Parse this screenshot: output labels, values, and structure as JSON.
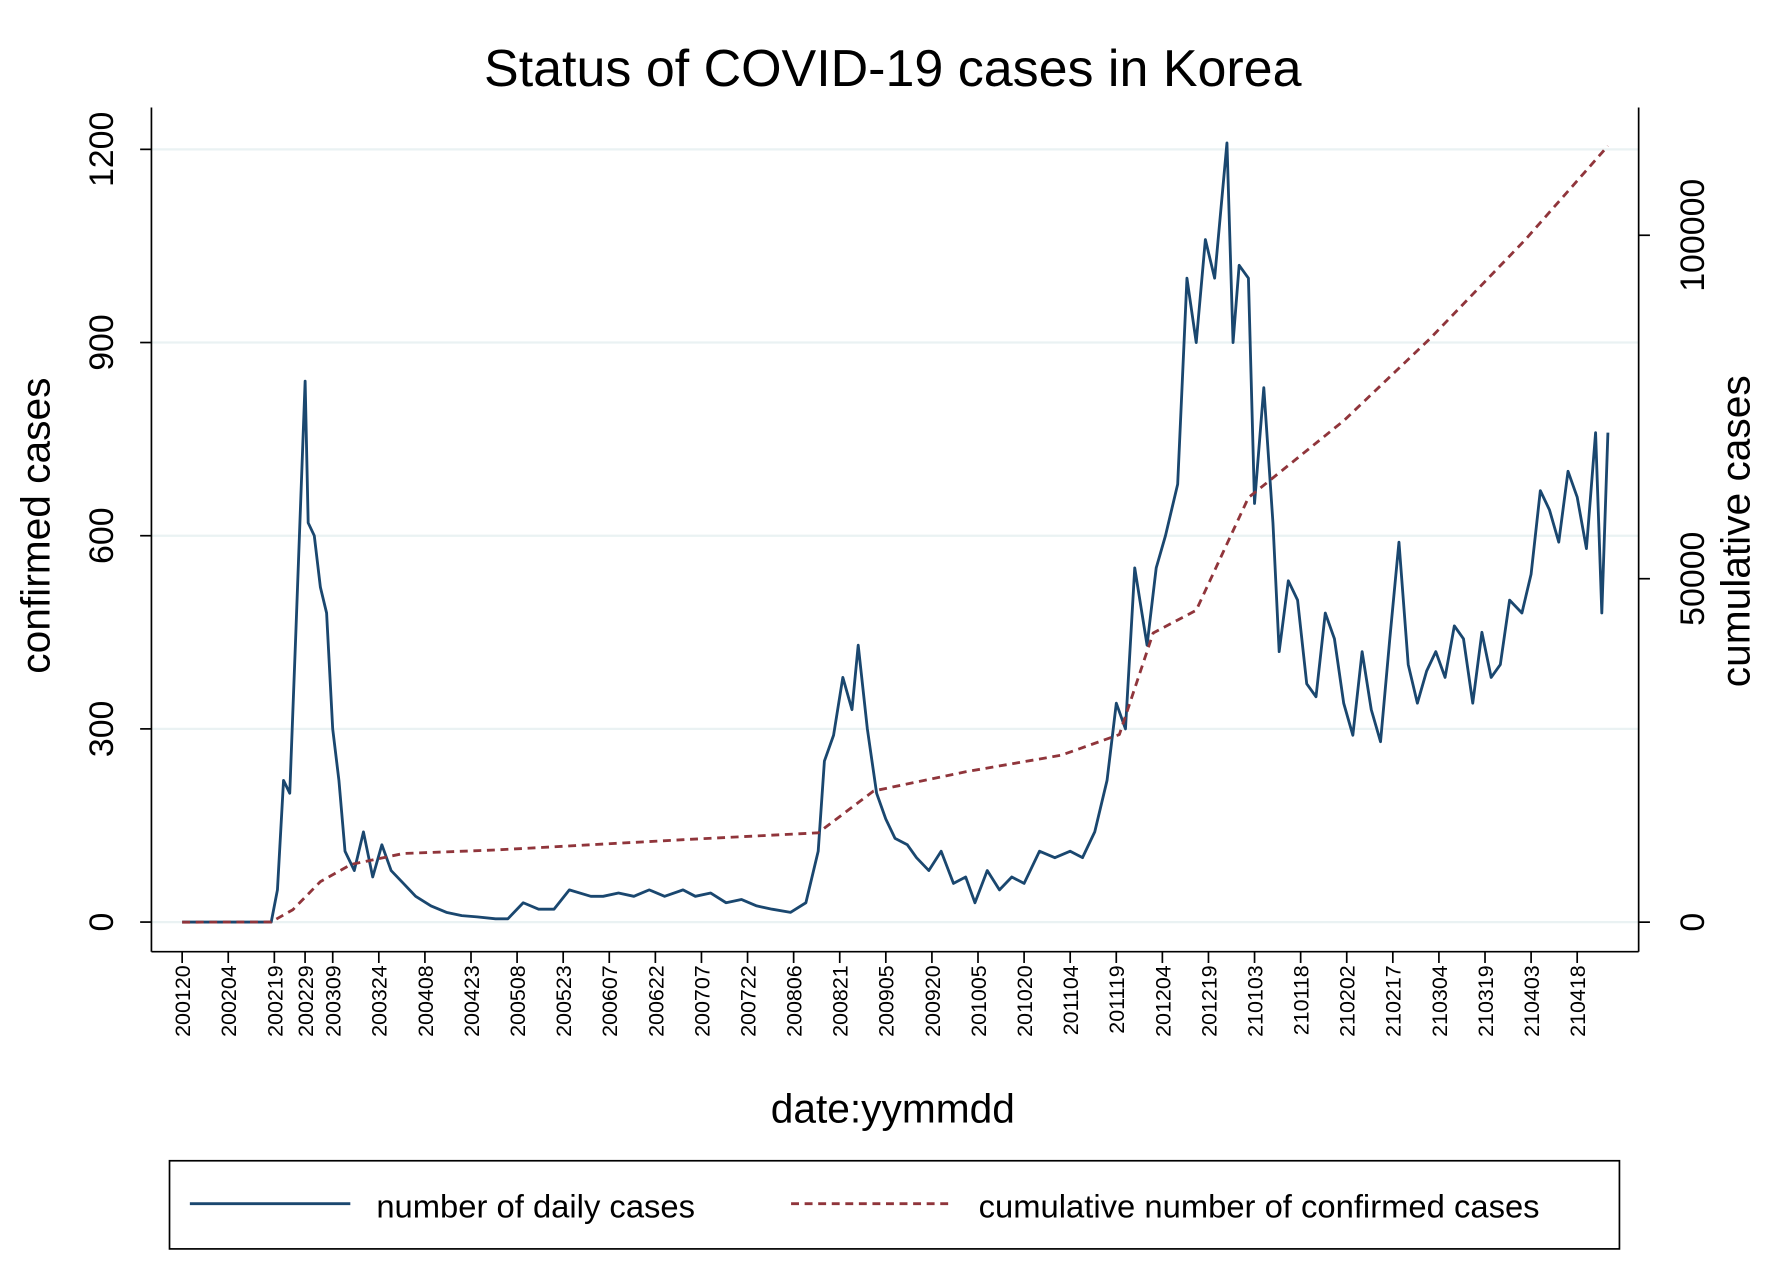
{
  "chart_data": {
    "type": "line",
    "title": "Status of COVID-19 cases in Korea",
    "xlabel": "date:yymmdd",
    "ylabel": "confirmed cases",
    "y2label": "cumulative cases",
    "xlim": [
      "200110",
      "210508"
    ],
    "xticks": [
      "200120",
      "200204",
      "200219",
      "200229",
      "200309",
      "200324",
      "200408",
      "200423",
      "200508",
      "200523",
      "200607",
      "200622",
      "200707",
      "200722",
      "200806",
      "200821",
      "200905",
      "200920",
      "201005",
      "201020",
      "201104",
      "201119",
      "201204",
      "201219",
      "210103",
      "210118",
      "210202",
      "210217",
      "210304",
      "210319",
      "210403",
      "210418"
    ],
    "ylim": [
      -46,
      1265
    ],
    "yticks": [
      0,
      300,
      600,
      900,
      1200
    ],
    "y2lim": [
      -4300,
      118600
    ],
    "y2ticks": [
      0,
      50000,
      100000
    ],
    "grid": true,
    "legend": "bottom",
    "series": [
      {
        "name": "number of daily cases",
        "color": "#1a476f",
        "style": "solid",
        "x": [
          "200120",
          "200218",
          "200220",
          "200222",
          "200224",
          "200226",
          "200229",
          "200301",
          "200303",
          "200305",
          "200307",
          "200309",
          "200311",
          "200313",
          "200316",
          "200319",
          "200322",
          "200325",
          "200328",
          "200401",
          "200405",
          "200410",
          "200415",
          "200420",
          "200425",
          "200501",
          "200505",
          "200510",
          "200515",
          "200520",
          "200525",
          "200601",
          "200605",
          "200610",
          "200615",
          "200620",
          "200625",
          "200701",
          "200705",
          "200710",
          "200715",
          "200720",
          "200725",
          "200730",
          "200805",
          "200810",
          "200814",
          "200816",
          "200819",
          "200822",
          "200825",
          "200827",
          "200830",
          "200902",
          "200905",
          "200908",
          "200912",
          "200915",
          "200919",
          "200923",
          "200927",
          "201001",
          "201004",
          "201008",
          "201012",
          "201016",
          "201020",
          "201025",
          "201030",
          "201104",
          "201108",
          "201112",
          "201116",
          "201119",
          "201122",
          "201125",
          "201129",
          "201202",
          "201205",
          "201209",
          "201212",
          "201215",
          "201218",
          "201221",
          "201225",
          "201227",
          "201229",
          "210101",
          "210103",
          "210106",
          "210109",
          "210111",
          "210114",
          "210117",
          "210120",
          "210123",
          "210126",
          "210129",
          "210201",
          "210204",
          "210207",
          "210210",
          "210213",
          "210216",
          "210219",
          "210222",
          "210225",
          "210228",
          "210303",
          "210306",
          "210309",
          "210312",
          "210315",
          "210318",
          "210321",
          "210324",
          "210327",
          "210331",
          "210403",
          "210406",
          "210409",
          "210412",
          "210415",
          "210418",
          "210421",
          "210424",
          "210426",
          "210428"
        ],
        "values": [
          0,
          0,
          50,
          220,
          200,
          450,
          840,
          620,
          600,
          520,
          480,
          300,
          220,
          110,
          80,
          140,
          70,
          120,
          80,
          60,
          40,
          25,
          15,
          10,
          8,
          5,
          5,
          30,
          20,
          20,
          50,
          40,
          40,
          45,
          40,
          50,
          40,
          50,
          40,
          45,
          30,
          35,
          25,
          20,
          15,
          30,
          110,
          250,
          290,
          380,
          330,
          430,
          300,
          200,
          160,
          130,
          120,
          100,
          80,
          110,
          60,
          70,
          30,
          80,
          50,
          70,
          60,
          110,
          100,
          110,
          100,
          140,
          220,
          340,
          300,
          550,
          430,
          550,
          600,
          680,
          1000,
          900,
          1060,
          1000,
          1210,
          900,
          1020,
          1000,
          650,
          830,
          620,
          420,
          530,
          500,
          370,
          350,
          480,
          440,
          340,
          290,
          420,
          330,
          280,
          440,
          590,
          400,
          340,
          390,
          420,
          380,
          460,
          440,
          340,
          450,
          380,
          400,
          500,
          480,
          540,
          670,
          640,
          590,
          700,
          660,
          580,
          760,
          480,
          760
        ]
      },
      {
        "name": "cumulative number of confirmed cases",
        "color": "#90353b",
        "style": "dashed",
        "axis": "y2",
        "x": [
          "200120",
          "200218",
          "200225",
          "200305",
          "200315",
          "200401",
          "200501",
          "200701",
          "200814",
          "200901",
          "201001",
          "201101",
          "201120",
          "201201",
          "201215",
          "210101",
          "210201",
          "210301",
          "210401",
          "210428"
        ],
        "values": [
          0,
          30,
          1800,
          5900,
          8400,
          10000,
          10500,
          12000,
          13000,
          19100,
          21900,
          24300,
          27300,
          42100,
          45400,
          61800,
          73000,
          84900,
          99300,
          113000
        ]
      }
    ]
  }
}
